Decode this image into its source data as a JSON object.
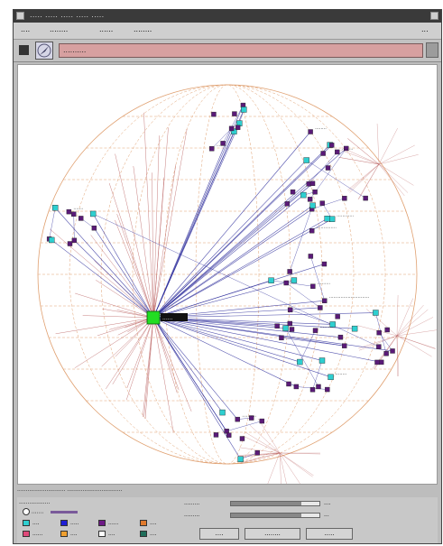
{
  "window": {
    "title": "..... ..... ..... ..... ....."
  },
  "menu": {
    "items": [
      "....",
      "........",
      "......",
      "........"
    ],
    "right_label": "..."
  },
  "toolbar": {
    "address": "..........",
    "icon": "compass-icon"
  },
  "graph": {
    "center_label": "......",
    "node_labels": [
      ".......",
      "........",
      "........",
      "............",
      "..............",
      "............................",
      ".........",
      "........",
      ".........",
      "..........",
      "......."
    ]
  },
  "status": {
    "text": "............................  ................................"
  },
  "legend": {
    "heading": "..................",
    "radio_label": ".......",
    "items": [
      {
        "label": "....",
        "color": "#2ecfd0"
      },
      {
        "label": ".....",
        "color": "#1f1fd6"
      },
      {
        "label": "......",
        "color": "#6e1a86"
      },
      {
        "label": "....",
        "color": "#e07a2c"
      },
      {
        "label": "......",
        "color": "#e04a7a"
      },
      {
        "label": "....",
        "color": "#f0a030"
      },
      {
        "label": "....",
        "color": "#ffffff"
      },
      {
        "label": "....",
        "color": "#1f6e5a"
      }
    ]
  },
  "controls": {
    "sliders": [
      {
        "label": ".........",
        "value": "....",
        "fraction": 0.8
      },
      {
        "label": ".........",
        "value": "...",
        "fraction": 0.8
      }
    ],
    "buttons": [
      "....",
      "........",
      "....."
    ]
  },
  "colors": {
    "accent": "#2ecfd0",
    "highlight": "#22dd22",
    "node": "#5a1a78",
    "edge_blue": "#2a2a9a",
    "edge_red": "#b04a4a",
    "lattice": "#e0a070"
  }
}
